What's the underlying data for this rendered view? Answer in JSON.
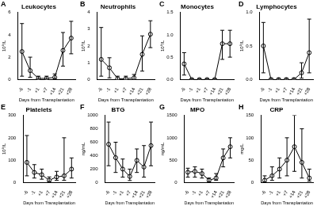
{
  "chart_data": [
    {
      "type": "line",
      "panel_label": "A",
      "title": "Leukocytes",
      "y_label": "10⁹/L",
      "x_label": "Days from Transplantation",
      "categories": [
        "-6",
        "-1",
        "+1",
        "+7",
        "+14",
        "+21",
        "+28"
      ],
      "values": [
        2.5,
        0.8,
        0.1,
        0.1,
        0.2,
        2.6,
        3.7
      ],
      "error_low": [
        0.3,
        0.2,
        0.05,
        0.05,
        0.1,
        1.2,
        2.3
      ],
      "error_high": [
        5,
        2,
        0.3,
        0.3,
        0.5,
        4.2,
        5.2
      ],
      "ylim": [
        0,
        6
      ],
      "yticks": [
        0,
        2,
        4,
        6
      ],
      "grid": false,
      "color": "#000000",
      "marker": "circle"
    },
    {
      "type": "line",
      "panel_label": "B",
      "title": "Neutrophils",
      "y_label": "10⁹/L",
      "x_label": "Days from Transplantation",
      "categories": [
        "-6",
        "-1",
        "+1",
        "+7",
        "+14",
        "+21",
        "+28"
      ],
      "values": [
        1.2,
        0.7,
        0.05,
        0.05,
        0.1,
        1.5,
        2.7
      ],
      "error_low": [
        0.2,
        0.1,
        0,
        0,
        0,
        0.5,
        1.9
      ],
      "error_high": [
        3.1,
        1.3,
        0.2,
        0.2,
        0.3,
        2.6,
        3.5
      ],
      "ylim": [
        0,
        4
      ],
      "yticks": [
        0,
        1,
        2,
        3,
        4
      ],
      "grid": false,
      "color": "#000000",
      "marker": "circle"
    },
    {
      "type": "line",
      "panel_label": "C",
      "title": "Monocytes",
      "y_label": "10⁹/L",
      "x_label": "Days from Transplantation",
      "categories": [
        "-6",
        "-1",
        "+1",
        "+7",
        "+14",
        "+21",
        "+28"
      ],
      "values": [
        0.35,
        0,
        0,
        0,
        0,
        0.8,
        0.8
      ],
      "error_low": [
        0.1,
        0,
        0,
        0,
        0,
        0.45,
        0.5
      ],
      "error_high": [
        0.6,
        0.02,
        0.02,
        0.02,
        0.02,
        1.1,
        1.1
      ],
      "ylim": [
        0,
        1.5
      ],
      "yticks": [
        {
          "value": 0,
          "label": "0.0"
        },
        {
          "value": 0.5,
          "label": "0.5"
        },
        {
          "value": 1,
          "label": "1.0"
        },
        {
          "value": 1.5,
          "label": "1.5"
        }
      ],
      "grid": false,
      "color": "#000000",
      "marker": "circle"
    },
    {
      "type": "line",
      "panel_label": "D",
      "title": "Lymphocytes",
      "y_label": "10⁹/L",
      "x_label": "Days from Transplantation",
      "categories": [
        "-6",
        "-1",
        "+1",
        "+7",
        "+14",
        "+21",
        "+28"
      ],
      "values": [
        0.5,
        0,
        0,
        0,
        0,
        0.1,
        0.4
      ],
      "error_low": [
        0.1,
        0,
        0,
        0,
        0,
        0.02,
        0.1
      ],
      "error_high": [
        0.85,
        0.02,
        0.02,
        0.02,
        0.02,
        0.25,
        0.9
      ],
      "ylim": [
        0,
        1
      ],
      "yticks": [
        {
          "value": 0,
          "label": "0.0"
        },
        {
          "value": 0.5,
          "label": "0.5"
        },
        {
          "value": 1,
          "label": "1.0"
        }
      ],
      "grid": false,
      "color": "#000000",
      "marker": "circle"
    },
    {
      "type": "line",
      "panel_label": "E",
      "title": "Platelets",
      "y_label": "10⁹/L",
      "x_label": "Days from Transplantation",
      "categories": [
        "-6",
        "-1",
        "+1",
        "+7",
        "+14",
        "+21",
        "+28"
      ],
      "values": [
        90,
        45,
        35,
        10,
        25,
        30,
        60
      ],
      "error_low": [
        30,
        20,
        15,
        5,
        10,
        10,
        20
      ],
      "error_high": [
        210,
        80,
        60,
        25,
        50,
        200,
        110
      ],
      "ylim": [
        0,
        300
      ],
      "yticks": [
        0,
        100,
        200,
        300
      ],
      "grid": false,
      "color": "#000000",
      "marker": "circle"
    },
    {
      "type": "line",
      "panel_label": "F",
      "title": "BTG",
      "y_label": "ng/mL",
      "x_label": "Days from Transplantation",
      "categories": [
        "-6",
        "-1",
        "+1",
        "+7",
        "+14",
        "+21",
        "+28"
      ],
      "values": [
        570,
        370,
        200,
        90,
        330,
        230,
        550
      ],
      "error_low": [
        250,
        150,
        80,
        30,
        150,
        80,
        250
      ],
      "error_high": [
        900,
        600,
        350,
        200,
        500,
        550,
        900
      ],
      "ylim": [
        0,
        1000
      ],
      "yticks": [
        0,
        200,
        400,
        600,
        800,
        1000
      ],
      "grid": false,
      "color": "#000000",
      "marker": "circle"
    },
    {
      "type": "line",
      "panel_label": "G",
      "title": "MPO",
      "y_label": "ng/mL",
      "x_label": "Days from Transplantation",
      "categories": [
        "-6",
        "-1",
        "+1",
        "+7",
        "+14",
        "+21",
        "+28"
      ],
      "values": [
        230,
        250,
        200,
        50,
        100,
        550,
        800
      ],
      "error_low": [
        120,
        120,
        100,
        20,
        50,
        350,
        550
      ],
      "error_high": [
        320,
        350,
        300,
        100,
        200,
        750,
        1000
      ],
      "ylim": [
        0,
        1500
      ],
      "yticks": [
        0,
        500,
        1000,
        1500
      ],
      "grid": false,
      "color": "#000000",
      "marker": "circle"
    },
    {
      "type": "line",
      "panel_label": "H",
      "title": "CRP",
      "y_label": "mg/L",
      "x_label": "Days from Transplantation",
      "categories": [
        "-6",
        "-1",
        "+1",
        "+7",
        "+14",
        "+21",
        "+28"
      ],
      "values": [
        5,
        15,
        30,
        50,
        80,
        45,
        10
      ],
      "error_low": [
        1,
        5,
        10,
        15,
        25,
        10,
        3
      ],
      "error_high": [
        15,
        35,
        55,
        100,
        150,
        120,
        30
      ],
      "ylim": [
        0,
        150
      ],
      "yticks": [
        0,
        50,
        100,
        150
      ],
      "grid": false,
      "color": "#000000",
      "marker": "circle"
    }
  ]
}
